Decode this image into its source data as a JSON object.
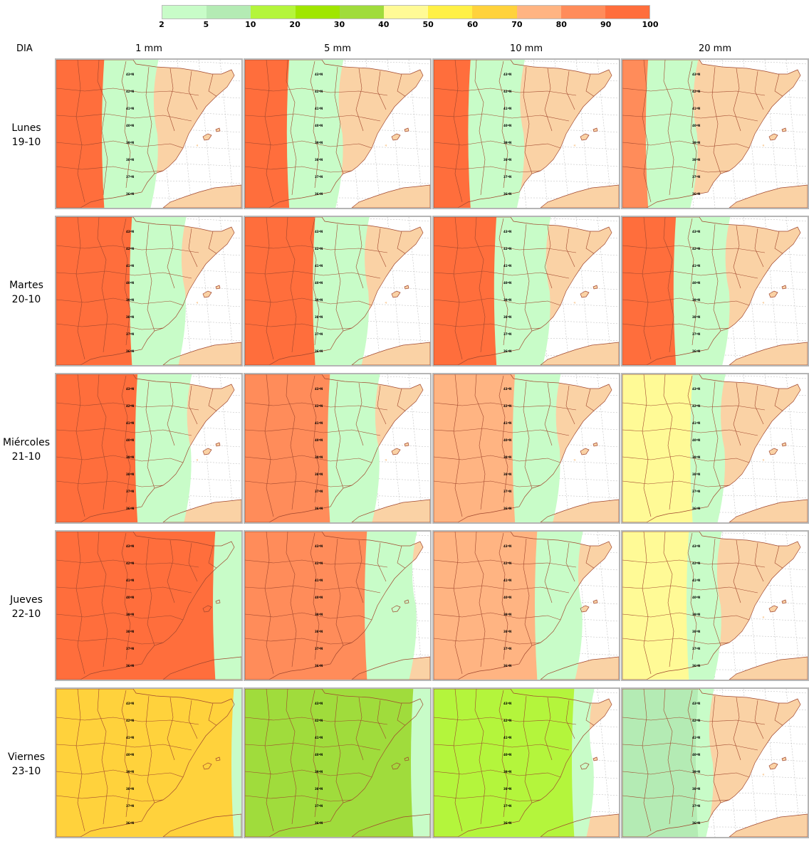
{
  "legend": {
    "colors": [
      "#c8fcc8",
      "#b4ebb4",
      "#b4f53c",
      "#a0e600",
      "#a0dc3c",
      "#fffa96",
      "#fff046",
      "#ffd23c",
      "#ffb482",
      "#ff8c5a",
      "#ff6e3c"
    ],
    "ticks": [
      "2",
      "5",
      "10",
      "20",
      "30",
      "40",
      "50",
      "60",
      "70",
      "80",
      "90",
      "100"
    ]
  },
  "header": {
    "dia": "DIA",
    "columns": [
      "1 mm",
      "5 mm",
      "10 mm",
      "20 mm"
    ]
  },
  "rows": [
    {
      "day": "Lunes",
      "date": "19-10"
    },
    {
      "day": "Martes",
      "date": "20-10"
    },
    {
      "day": "Miércoles",
      "date": "21-10"
    },
    {
      "day": "Jueves",
      "date": "22-10"
    },
    {
      "day": "Viernes",
      "date": "23-10"
    }
  ],
  "map": {
    "land_color": "#fad2a5",
    "border_color": "#a0462d",
    "grid_color": "#b4b4b4",
    "lat_labels": [
      "43ºN",
      "42ºN",
      "41ºN",
      "40ºN",
      "39ºN",
      "38ºN",
      "37ºN",
      "36ºN"
    ]
  },
  "probability_fields": {
    "description_levels": "0=none, 1=2-5, 2=5-10, 3=10-20, 4=20-30, 5=30-40, 6=40-50, 7=50-60, 8=60-70, 9=70-80, 10=80-90, 11=90-100",
    "panels": [
      {
        "row": 0,
        "col": 0,
        "front_x": 0.3,
        "max_level": 11
      },
      {
        "row": 0,
        "col": 1,
        "front_x": 0.28,
        "max_level": 11
      },
      {
        "row": 0,
        "col": 2,
        "front_x": 0.24,
        "max_level": 11
      },
      {
        "row": 0,
        "col": 3,
        "front_x": 0.18,
        "max_level": 10
      },
      {
        "row": 1,
        "col": 0,
        "front_x": 0.45,
        "max_level": 11
      },
      {
        "row": 1,
        "col": 1,
        "front_x": 0.42,
        "max_level": 11
      },
      {
        "row": 1,
        "col": 2,
        "front_x": 0.38,
        "max_level": 11
      },
      {
        "row": 1,
        "col": 3,
        "front_x": 0.33,
        "max_level": 11
      },
      {
        "row": 2,
        "col": 0,
        "front_x": 0.48,
        "max_level": 11
      },
      {
        "row": 2,
        "col": 1,
        "front_x": 0.5,
        "max_level": 10
      },
      {
        "row": 2,
        "col": 2,
        "front_x": 0.48,
        "max_level": 9
      },
      {
        "row": 2,
        "col": 3,
        "front_x": 0.42,
        "max_level": 6
      },
      {
        "row": 3,
        "col": 0,
        "front_x": 0.9,
        "max_level": 11
      },
      {
        "row": 3,
        "col": 1,
        "front_x": 0.7,
        "max_level": 10
      },
      {
        "row": 3,
        "col": 2,
        "front_x": 0.6,
        "max_level": 9
      },
      {
        "row": 3,
        "col": 3,
        "front_x": 0.4,
        "max_level": 6
      },
      {
        "row": 4,
        "col": 0,
        "front_x": 1.0,
        "max_level": 8
      },
      {
        "row": 4,
        "col": 1,
        "front_x": 0.95,
        "max_level": 5
      },
      {
        "row": 4,
        "col": 2,
        "front_x": 0.8,
        "max_level": 3
      },
      {
        "row": 4,
        "col": 3,
        "front_x": 0.45,
        "max_level": 2
      }
    ]
  }
}
